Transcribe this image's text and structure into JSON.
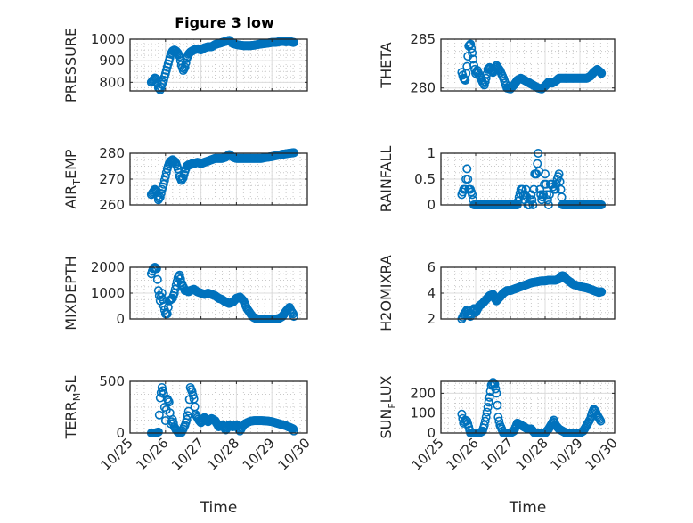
{
  "figure": {
    "title": "Figure 3 low",
    "marker_color": "#0072bd"
  },
  "chart_data": [
    {
      "type": "scatter",
      "id": "pressure",
      "ylabel": "PRESSURE",
      "xlim": [
        0,
        5
      ],
      "ylim": [
        760,
        1000
      ],
      "yticks": [
        800,
        900,
        1000
      ],
      "xticks": [
        0,
        1,
        2,
        3,
        4,
        5
      ],
      "xticklabels": [
        "10/25",
        "10/26",
        "10/27",
        "10/28",
        "10/29",
        "10/30"
      ],
      "show_xticklabels": false,
      "xlabel": "",
      "grid": true,
      "minor_grid": true,
      "x": [
        0.6,
        0.65,
        0.7,
        0.75,
        0.8,
        0.85,
        0.9,
        0.95,
        1.0,
        1.05,
        1.1,
        1.15,
        1.2,
        1.25,
        1.3,
        1.35,
        1.4,
        1.45,
        1.5,
        1.55,
        1.6,
        1.65,
        1.7,
        1.75,
        1.8,
        1.9,
        2.0,
        2.1,
        2.2,
        2.3,
        2.4,
        2.5,
        2.6,
        2.7,
        2.8,
        2.9,
        3.0,
        3.1,
        3.2,
        3.3,
        3.4,
        3.5,
        3.6,
        3.7,
        3.8,
        3.9,
        4.0,
        4.1,
        4.2,
        4.3,
        4.4,
        4.5,
        4.6,
        4.62
      ],
      "y": [
        800,
        810,
        820,
        815,
        775,
        765,
        790,
        810,
        840,
        870,
        900,
        930,
        945,
        950,
        945,
        935,
        920,
        880,
        855,
        870,
        910,
        930,
        940,
        945,
        950,
        955,
        950,
        960,
        965,
        965,
        975,
        980,
        985,
        990,
        995,
        980,
        975,
        972,
        970,
        970,
        970,
        972,
        975,
        978,
        980,
        982,
        985,
        985,
        988,
        990,
        988,
        990,
        985,
        985
      ]
    },
    {
      "type": "scatter",
      "id": "theta",
      "ylabel": "THETA",
      "xlim": [
        0,
        5
      ],
      "ylim": [
        279.7,
        285
      ],
      "yticks": [
        280,
        285
      ],
      "xticks": [
        0,
        1,
        2,
        3,
        4,
        5
      ],
      "xticklabels": [
        "10/25",
        "10/26",
        "10/27",
        "10/28",
        "10/29",
        "10/30"
      ],
      "show_xticklabels": false,
      "xlabel": "",
      "grid": true,
      "minor_grid": true,
      "x": [
        0.6,
        0.65,
        0.7,
        0.75,
        0.8,
        0.85,
        0.9,
        0.95,
        1.0,
        1.05,
        1.1,
        1.15,
        1.2,
        1.25,
        1.3,
        1.35,
        1.4,
        1.45,
        1.5,
        1.6,
        1.7,
        1.8,
        1.9,
        2.0,
        2.1,
        2.2,
        2.3,
        2.4,
        2.5,
        2.6,
        2.7,
        2.8,
        2.9,
        3.0,
        3.1,
        3.2,
        3.3,
        3.4,
        3.5,
        3.6,
        3.7,
        3.8,
        3.9,
        4.0,
        4.1,
        4.2,
        4.3,
        4.4,
        4.5,
        4.6,
        4.62
      ],
      "y": [
        281.6,
        281.0,
        280.8,
        282.2,
        284.3,
        284.5,
        283.6,
        282.3,
        281.5,
        281.8,
        281.3,
        281.0,
        280.6,
        280.3,
        281.0,
        281.9,
        282.1,
        281.8,
        281.6,
        282.3,
        281.8,
        281.0,
        280.0,
        279.9,
        280.3,
        280.8,
        281.0,
        280.8,
        280.6,
        280.4,
        280.2,
        280.0,
        279.9,
        280.2,
        280.6,
        280.5,
        280.7,
        281.0,
        281.0,
        281.0,
        281.0,
        281.0,
        281.0,
        281.0,
        281.0,
        281.0,
        281.2,
        281.6,
        281.9,
        281.6,
        281.5
      ]
    },
    {
      "type": "scatter",
      "id": "air_temp",
      "ylabel": "AIR_TEMP",
      "xlim": [
        0,
        5
      ],
      "ylim": [
        260,
        280
      ],
      "yticks": [
        260,
        270,
        280
      ],
      "xticks": [
        0,
        1,
        2,
        3,
        4,
        5
      ],
      "xticklabels": [
        "10/25",
        "10/26",
        "10/27",
        "10/28",
        "10/29",
        "10/30"
      ],
      "show_xticklabels": false,
      "xlabel": "",
      "grid": true,
      "minor_grid": true,
      "x": [
        0.6,
        0.65,
        0.7,
        0.75,
        0.8,
        0.85,
        0.9,
        0.95,
        1.0,
        1.05,
        1.1,
        1.15,
        1.2,
        1.25,
        1.3,
        1.35,
        1.4,
        1.45,
        1.5,
        1.55,
        1.6,
        1.65,
        1.7,
        1.75,
        1.8,
        1.9,
        2.0,
        2.1,
        2.2,
        2.3,
        2.4,
        2.5,
        2.6,
        2.7,
        2.8,
        2.9,
        3.0,
        3.1,
        3.2,
        3.3,
        3.4,
        3.5,
        3.6,
        3.7,
        3.8,
        3.9,
        4.0,
        4.1,
        4.2,
        4.3,
        4.4,
        4.5,
        4.6,
        4.62
      ],
      "y": [
        264,
        265,
        266,
        265,
        262,
        263,
        266,
        268,
        271,
        274,
        276,
        277,
        277.5,
        277,
        276,
        274,
        271,
        269.5,
        270.5,
        273,
        275,
        275.5,
        275.5,
        276,
        276,
        276.5,
        276,
        276.5,
        277,
        277.5,
        278,
        278,
        278,
        278.5,
        279.5,
        278.5,
        278,
        278,
        278,
        278,
        278,
        278,
        278,
        278,
        278.3,
        278.5,
        278.7,
        279,
        279.3,
        279.6,
        279.8,
        280,
        280.2,
        280.2
      ]
    },
    {
      "type": "scatter",
      "id": "rainfall",
      "ylabel": "RAINFALL",
      "xlim": [
        0,
        5
      ],
      "ylim": [
        0,
        1
      ],
      "yticks": [
        0,
        0.5,
        1
      ],
      "xticks": [
        0,
        1,
        2,
        3,
        4,
        5
      ],
      "xticklabels": [
        "10/25",
        "10/26",
        "10/27",
        "10/28",
        "10/29",
        "10/30"
      ],
      "show_xticklabels": false,
      "xlabel": "",
      "grid": true,
      "minor_grid": true,
      "x": [
        0.6,
        0.65,
        0.7,
        0.72,
        0.75,
        0.8,
        0.85,
        0.9,
        0.95,
        1.0,
        1.1,
        1.2,
        1.3,
        1.4,
        1.5,
        1.6,
        1.7,
        1.8,
        1.9,
        2.0,
        2.1,
        2.2,
        2.3,
        2.35,
        2.4,
        2.45,
        2.5,
        2.55,
        2.6,
        2.65,
        2.7,
        2.75,
        2.8,
        2.85,
        2.9,
        2.95,
        3.0,
        3.05,
        3.1,
        3.15,
        3.2,
        3.25,
        3.3,
        3.35,
        3.4,
        3.45,
        3.5,
        3.55,
        3.6,
        3.7,
        3.8,
        3.9,
        4.0,
        4.1,
        4.2,
        4.3,
        4.4,
        4.5,
        4.6,
        4.62
      ],
      "y": [
        0.2,
        0.3,
        0.3,
        0.5,
        0.7,
        0.3,
        0.3,
        0.2,
        0,
        0,
        0,
        0,
        0,
        0,
        0,
        0,
        0,
        0,
        0,
        0,
        0,
        0,
        0.3,
        0.3,
        0.1,
        0.3,
        0,
        0,
        0.2,
        0,
        0.6,
        0.6,
        1.0,
        0.3,
        0.1,
        0.2,
        0.6,
        0.2,
        0,
        0.4,
        0.4,
        0.3,
        0.3,
        0.5,
        0.6,
        0.3,
        0,
        0,
        0,
        0,
        0,
        0,
        0,
        0,
        0,
        0,
        0,
        0,
        0,
        0
      ]
    },
    {
      "type": "scatter",
      "id": "mixdepth",
      "ylabel": "MIXDEPTH",
      "xlim": [
        0,
        5
      ],
      "ylim": [
        0,
        2000
      ],
      "yticks": [
        0,
        1000,
        2000
      ],
      "xticks": [
        0,
        1,
        2,
        3,
        4,
        5
      ],
      "xticklabels": [
        "10/25",
        "10/26",
        "10/27",
        "10/28",
        "10/29",
        "10/30"
      ],
      "show_xticklabels": false,
      "xlabel": "",
      "grid": true,
      "minor_grid": true,
      "x": [
        0.6,
        0.65,
        0.7,
        0.75,
        0.8,
        0.85,
        0.9,
        0.95,
        1.0,
        1.05,
        1.1,
        1.15,
        1.2,
        1.25,
        1.3,
        1.35,
        1.4,
        1.45,
        1.5,
        1.55,
        1.6,
        1.65,
        1.7,
        1.8,
        1.9,
        2.0,
        2.1,
        2.2,
        2.3,
        2.4,
        2.5,
        2.6,
        2.7,
        2.8,
        2.9,
        3.0,
        3.1,
        3.2,
        3.3,
        3.4,
        3.45,
        3.5,
        3.55,
        3.6,
        3.7,
        3.8,
        3.9,
        4.0,
        4.1,
        4.2,
        4.3,
        4.4,
        4.5,
        4.55,
        4.6,
        4.62
      ],
      "y": [
        1750,
        1950,
        2000,
        1950,
        1100,
        700,
        1000,
        500,
        200,
        200,
        700,
        750,
        800,
        1000,
        1300,
        1600,
        1700,
        1400,
        1250,
        1100,
        1100,
        1050,
        1100,
        1150,
        1050,
        1000,
        950,
        1000,
        950,
        900,
        800,
        750,
        650,
        600,
        650,
        800,
        850,
        700,
        400,
        200,
        100,
        50,
        20,
        0,
        0,
        0,
        0,
        0,
        0,
        20,
        100,
        300,
        450,
        300,
        200,
        100
      ]
    },
    {
      "type": "scatter",
      "id": "h2omixra",
      "ylabel": "H2OMIXRA",
      "xlim": [
        0,
        5
      ],
      "ylim": [
        2,
        6
      ],
      "yticks": [
        2,
        4,
        6
      ],
      "xticks": [
        0,
        1,
        2,
        3,
        4,
        5
      ],
      "xticklabels": [
        "10/25",
        "10/26",
        "10/27",
        "10/28",
        "10/29",
        "10/30"
      ],
      "show_xticklabels": false,
      "xlabel": "",
      "grid": true,
      "minor_grid": true,
      "x": [
        0.6,
        0.65,
        0.7,
        0.75,
        0.8,
        0.85,
        0.9,
        0.95,
        1.0,
        1.1,
        1.2,
        1.3,
        1.4,
        1.5,
        1.55,
        1.6,
        1.7,
        1.8,
        1.9,
        2.0,
        2.1,
        2.2,
        2.3,
        2.4,
        2.5,
        2.6,
        2.7,
        2.8,
        2.9,
        3.0,
        3.1,
        3.2,
        3.3,
        3.4,
        3.45,
        3.5,
        3.55,
        3.6,
        3.7,
        3.8,
        3.9,
        4.0,
        4.1,
        4.2,
        4.3,
        4.4,
        4.5,
        4.55,
        4.6,
        4.62
      ],
      "y": [
        2.0,
        2.3,
        2.5,
        2.7,
        2.4,
        2.2,
        2.6,
        2.8,
        2.5,
        3.0,
        3.2,
        3.5,
        3.8,
        3.9,
        3.6,
        3.4,
        3.7,
        4.0,
        4.2,
        4.2,
        4.3,
        4.4,
        4.5,
        4.6,
        4.7,
        4.8,
        4.85,
        4.9,
        4.95,
        4.95,
        5.0,
        5.0,
        5.0,
        5.1,
        5.3,
        5.35,
        5.3,
        5.1,
        4.9,
        4.7,
        4.6,
        4.5,
        4.45,
        4.4,
        4.3,
        4.2,
        4.1,
        4.05,
        4.1,
        4.1
      ]
    },
    {
      "type": "scatter",
      "id": "terr_msl",
      "ylabel": "TERR_MSL",
      "xlim": [
        0,
        5
      ],
      "ylim": [
        0,
        500
      ],
      "yticks": [
        0,
        500
      ],
      "xticks": [
        0,
        1,
        2,
        3,
        4,
        5
      ],
      "xticklabels": [
        "10/25",
        "10/26",
        "10/27",
        "10/28",
        "10/29",
        "10/30"
      ],
      "show_xticklabels": true,
      "xlabel": "Time",
      "grid": true,
      "minor_grid": true,
      "x": [
        0.6,
        0.65,
        0.7,
        0.75,
        0.8,
        0.85,
        0.9,
        0.95,
        1.0,
        1.05,
        1.1,
        1.15,
        1.2,
        1.25,
        1.3,
        1.35,
        1.4,
        1.45,
        1.5,
        1.55,
        1.6,
        1.65,
        1.7,
        1.75,
        1.8,
        1.85,
        1.9,
        1.95,
        2.0,
        2.1,
        2.2,
        2.3,
        2.4,
        2.5,
        2.6,
        2.7,
        2.8,
        2.9,
        3.0,
        3.1,
        3.2,
        3.3,
        3.4,
        3.5,
        3.6,
        3.7,
        3.8,
        3.9,
        4.0,
        4.1,
        4.2,
        4.3,
        4.4,
        4.5,
        4.6,
        4.62
      ],
      "y": [
        0,
        0,
        0,
        5,
        10,
        340,
        440,
        380,
        120,
        330,
        300,
        90,
        130,
        60,
        30,
        10,
        0,
        5,
        40,
        75,
        130,
        210,
        440,
        400,
        330,
        180,
        150,
        120,
        100,
        150,
        110,
        140,
        120,
        60,
        80,
        30,
        80,
        60,
        80,
        20,
        80,
        100,
        115,
        120,
        120,
        120,
        118,
        115,
        110,
        100,
        90,
        80,
        70,
        55,
        40,
        20
      ]
    },
    {
      "type": "scatter",
      "id": "sun_flux",
      "ylabel": "SUN_FLUX",
      "xlim": [
        0,
        5
      ],
      "ylim": [
        0,
        260
      ],
      "yticks": [
        0,
        100,
        200
      ],
      "xticks": [
        0,
        1,
        2,
        3,
        4,
        5
      ],
      "xticklabels": [
        "10/25",
        "10/26",
        "10/27",
        "10/28",
        "10/29",
        "10/30"
      ],
      "show_xticklabels": true,
      "xlabel": "Time",
      "grid": true,
      "minor_grid": true,
      "x": [
        0.6,
        0.65,
        0.7,
        0.75,
        0.8,
        0.85,
        0.9,
        1.0,
        1.1,
        1.2,
        1.25,
        1.3,
        1.35,
        1.4,
        1.45,
        1.5,
        1.55,
        1.6,
        1.65,
        1.7,
        1.75,
        1.8,
        1.85,
        1.9,
        2.0,
        2.1,
        2.2,
        2.3,
        2.4,
        2.5,
        2.6,
        2.7,
        2.8,
        2.9,
        3.0,
        3.1,
        3.2,
        3.25,
        3.3,
        3.35,
        3.4,
        3.5,
        3.6,
        3.7,
        3.8,
        3.9,
        4.0,
        4.1,
        4.2,
        4.3,
        4.35,
        4.4,
        4.45,
        4.5,
        4.55,
        4.6
      ],
      "y": [
        95,
        50,
        65,
        60,
        30,
        0,
        0,
        0,
        0,
        10,
        40,
        80,
        130,
        180,
        240,
        255,
        245,
        200,
        80,
        40,
        20,
        0,
        0,
        0,
        0,
        10,
        50,
        40,
        30,
        20,
        20,
        0,
        0,
        0,
        0,
        20,
        50,
        65,
        40,
        30,
        20,
        10,
        0,
        0,
        0,
        0,
        0,
        10,
        40,
        70,
        100,
        120,
        110,
        90,
        75,
        60
      ]
    }
  ]
}
